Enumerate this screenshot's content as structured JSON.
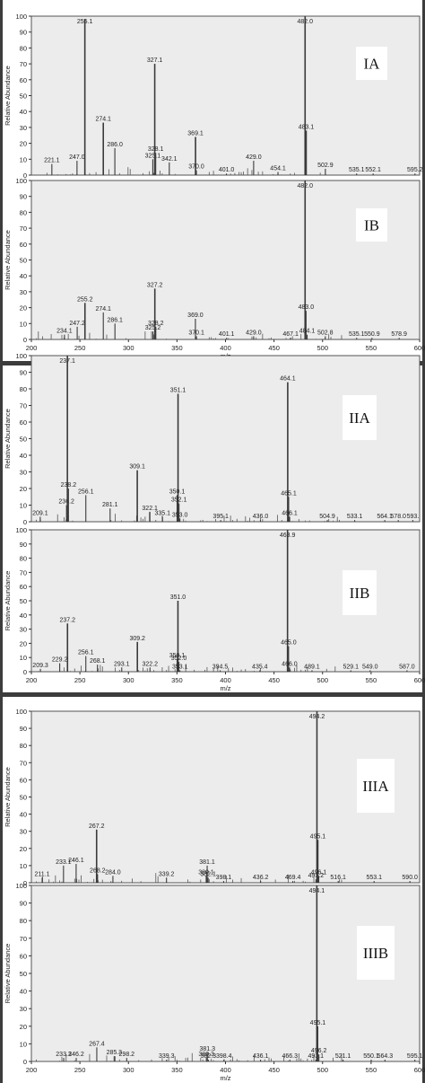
{
  "figure": {
    "x_axis_label": "m/z",
    "y_axis_label": "Relative Abundance",
    "x_ticks": [
      200,
      250,
      300,
      350,
      400,
      450,
      500,
      550,
      600
    ],
    "y_ticks": [
      0,
      10,
      20,
      30,
      40,
      50,
      60,
      70,
      80,
      90,
      100
    ]
  },
  "chart_data": [
    {
      "type": "bar",
      "title": "IA",
      "xlabel": "m/z",
      "ylabel": "Relative Abundance",
      "xlim": [
        200,
        600
      ],
      "ylim": [
        0,
        100
      ],
      "grid": false,
      "peaks": [
        {
          "x": 221.1,
          "y": 7,
          "label": "221.1"
        },
        {
          "x": 247.0,
          "y": 9,
          "label": "247.0"
        },
        {
          "x": 255.1,
          "y": 98,
          "label": "255.1"
        },
        {
          "x": 274.1,
          "y": 33,
          "label": "274.1"
        },
        {
          "x": 286.0,
          "y": 17,
          "label": "286.0"
        },
        {
          "x": 325.1,
          "y": 10,
          "label": "325.1"
        },
        {
          "x": 327.1,
          "y": 70,
          "label": "327.1"
        },
        {
          "x": 328.1,
          "y": 14,
          "label": "328.1"
        },
        {
          "x": 342.1,
          "y": 8,
          "label": "342.1"
        },
        {
          "x": 369.1,
          "y": 24,
          "label": "369.1"
        },
        {
          "x": 370.0,
          "y": 3,
          "label": "370.0"
        },
        {
          "x": 401.0,
          "y": 1,
          "label": "401.0"
        },
        {
          "x": 429.0,
          "y": 9,
          "label": "429.0"
        },
        {
          "x": 454.1,
          "y": 2,
          "label": "454.1"
        },
        {
          "x": 482.0,
          "y": 100,
          "label": "482.0"
        },
        {
          "x": 483.1,
          "y": 28,
          "label": "483.1"
        },
        {
          "x": 502.9,
          "y": 4,
          "label": "502.9"
        },
        {
          "x": 535.1,
          "y": 1,
          "label": "535.1"
        },
        {
          "x": 552.1,
          "y": 1,
          "label": "552.1"
        },
        {
          "x": 595.2,
          "y": 1,
          "label": "595.2"
        }
      ]
    },
    {
      "type": "bar",
      "title": "IB",
      "xlabel": "m/z",
      "ylabel": "Relative Abundance",
      "xlim": [
        200,
        600
      ],
      "ylim": [
        0,
        100
      ],
      "grid": false,
      "peaks": [
        {
          "x": 234.1,
          "y": 3,
          "label": "234.1"
        },
        {
          "x": 247.2,
          "y": 8,
          "label": "247.2"
        },
        {
          "x": 255.2,
          "y": 23,
          "label": "255.2"
        },
        {
          "x": 274.1,
          "y": 17,
          "label": "274.1"
        },
        {
          "x": 286.1,
          "y": 10,
          "label": "286.1"
        },
        {
          "x": 325.2,
          "y": 5,
          "label": "325.2"
        },
        {
          "x": 327.2,
          "y": 32,
          "label": "327.2"
        },
        {
          "x": 328.2,
          "y": 8,
          "label": "328.2"
        },
        {
          "x": 369.0,
          "y": 13,
          "label": "369.0"
        },
        {
          "x": 370.1,
          "y": 2,
          "label": "370.1"
        },
        {
          "x": 401.1,
          "y": 1,
          "label": "401.1"
        },
        {
          "x": 429.0,
          "y": 2,
          "label": "429.0"
        },
        {
          "x": 467.1,
          "y": 1,
          "label": "467.1"
        },
        {
          "x": 482.0,
          "y": 100,
          "label": "482.0"
        },
        {
          "x": 483.0,
          "y": 18,
          "label": "483.0"
        },
        {
          "x": 484.1,
          "y": 3,
          "label": "484.1"
        },
        {
          "x": 502.8,
          "y": 2,
          "label": "502.8"
        },
        {
          "x": 535.1,
          "y": 1,
          "label": "535.1"
        },
        {
          "x": 550.9,
          "y": 1,
          "label": "550.9"
        },
        {
          "x": 578.9,
          "y": 1,
          "label": "578.9"
        }
      ]
    },
    {
      "type": "bar",
      "title": "IIA",
      "xlabel": "m/z",
      "ylabel": "Relative Abundance",
      "xlim": [
        200,
        600
      ],
      "ylim": [
        0,
        100
      ],
      "grid": false,
      "peaks": [
        {
          "x": 209.1,
          "y": 3,
          "label": "209.1"
        },
        {
          "x": 236.2,
          "y": 10,
          "label": "236.2"
        },
        {
          "x": 237.1,
          "y": 100,
          "label": "237.1"
        },
        {
          "x": 238.2,
          "y": 20,
          "label": "238.2"
        },
        {
          "x": 256.1,
          "y": 16,
          "label": "256.1"
        },
        {
          "x": 281.1,
          "y": 8,
          "label": "281.1"
        },
        {
          "x": 309.1,
          "y": 31,
          "label": "309.1"
        },
        {
          "x": 322.1,
          "y": 6,
          "label": "322.1"
        },
        {
          "x": 335.1,
          "y": 3,
          "label": "335.1"
        },
        {
          "x": 350.1,
          "y": 16,
          "label": "350.1"
        },
        {
          "x": 351.1,
          "y": 77,
          "label": "351.1"
        },
        {
          "x": 352.1,
          "y": 11,
          "label": "352.1"
        },
        {
          "x": 353.0,
          "y": 2,
          "label": "353.0"
        },
        {
          "x": 395.1,
          "y": 1,
          "label": "395.1"
        },
        {
          "x": 436.0,
          "y": 1,
          "label": "436.0"
        },
        {
          "x": 464.1,
          "y": 84,
          "label": "464.1"
        },
        {
          "x": 465.1,
          "y": 15,
          "label": "465.1"
        },
        {
          "x": 466.1,
          "y": 3,
          "label": "466.1"
        },
        {
          "x": 504.9,
          "y": 1,
          "label": "504.9"
        },
        {
          "x": 533.1,
          "y": 1,
          "label": "533.1"
        },
        {
          "x": 564.1,
          "y": 1,
          "label": "564.1"
        },
        {
          "x": 578.0,
          "y": 1,
          "label": "578.0"
        },
        {
          "x": 593.0,
          "y": 1,
          "label": "593."
        }
      ]
    },
    {
      "type": "bar",
      "title": "IIB",
      "xlabel": "m/z",
      "ylabel": "Relative Abundance",
      "xlim": [
        200,
        600
      ],
      "ylim": [
        0,
        100
      ],
      "grid": false,
      "peaks": [
        {
          "x": 209.3,
          "y": 2,
          "label": "209.3"
        },
        {
          "x": 229.2,
          "y": 6,
          "label": "229.2"
        },
        {
          "x": 237.2,
          "y": 34,
          "label": "237.2"
        },
        {
          "x": 256.1,
          "y": 11,
          "label": "256.1"
        },
        {
          "x": 268.1,
          "y": 5,
          "label": "268.1"
        },
        {
          "x": 293.1,
          "y": 3,
          "label": "293.1"
        },
        {
          "x": 309.2,
          "y": 21,
          "label": "309.2"
        },
        {
          "x": 322.2,
          "y": 3,
          "label": "322.2"
        },
        {
          "x": 350.1,
          "y": 9,
          "label": "350.1"
        },
        {
          "x": 351.0,
          "y": 50,
          "label": "351.0"
        },
        {
          "x": 352.0,
          "y": 7,
          "label": "352.0"
        },
        {
          "x": 353.1,
          "y": 1,
          "label": "353.1"
        },
        {
          "x": 394.5,
          "y": 1,
          "label": "394.5"
        },
        {
          "x": 435.4,
          "y": 1,
          "label": "435.4"
        },
        {
          "x": 463.9,
          "y": 100,
          "label": "463.9"
        },
        {
          "x": 465.0,
          "y": 18,
          "label": "465.0"
        },
        {
          "x": 466.0,
          "y": 3,
          "label": "466.0"
        },
        {
          "x": 489.1,
          "y": 1,
          "label": "489.1"
        },
        {
          "x": 529.1,
          "y": 1,
          "label": "529.1"
        },
        {
          "x": 549.0,
          "y": 1,
          "label": "549.0"
        },
        {
          "x": 587.0,
          "y": 1,
          "label": "587.0"
        }
      ]
    },
    {
      "type": "bar",
      "title": "IIIA",
      "xlabel": "m/z",
      "ylabel": "Relative Abundance",
      "xlim": [
        200,
        600
      ],
      "ylim": [
        0,
        100
      ],
      "grid": false,
      "peaks": [
        {
          "x": 211.1,
          "y": 3,
          "label": "211.1"
        },
        {
          "x": 233.1,
          "y": 10,
          "label": "233.1"
        },
        {
          "x": 246.1,
          "y": 11,
          "label": "246.1"
        },
        {
          "x": 267.2,
          "y": 31,
          "label": "267.2"
        },
        {
          "x": 268.2,
          "y": 5,
          "label": "268.2"
        },
        {
          "x": 284.0,
          "y": 4,
          "label": "284.0"
        },
        {
          "x": 339.2,
          "y": 3,
          "label": "339.2"
        },
        {
          "x": 380.1,
          "y": 4,
          "label": "380.1"
        },
        {
          "x": 381.1,
          "y": 10,
          "label": "381.1"
        },
        {
          "x": 382.1,
          "y": 3,
          "label": "382.1"
        },
        {
          "x": 398.1,
          "y": 1,
          "label": "398.1"
        },
        {
          "x": 436.2,
          "y": 1,
          "label": "436.2"
        },
        {
          "x": 469.4,
          "y": 1,
          "label": "469.4"
        },
        {
          "x": 493.2,
          "y": 2,
          "label": "493.2"
        },
        {
          "x": 494.2,
          "y": 100,
          "label": "494.2"
        },
        {
          "x": 495.1,
          "y": 25,
          "label": "495.1"
        },
        {
          "x": 496.1,
          "y": 4,
          "label": "496.1"
        },
        {
          "x": 516.1,
          "y": 1,
          "label": "516.1"
        },
        {
          "x": 553.1,
          "y": 1,
          "label": "553.1"
        },
        {
          "x": 590.0,
          "y": 1,
          "label": "590.0"
        }
      ]
    },
    {
      "type": "bar",
      "title": "IIIB",
      "xlabel": "m/z",
      "ylabel": "Relative Abundance",
      "xlim": [
        200,
        600
      ],
      "ylim": [
        0,
        100
      ],
      "grid": false,
      "peaks": [
        {
          "x": 233.3,
          "y": 2,
          "label": "233.3"
        },
        {
          "x": 246.2,
          "y": 2,
          "label": "246.2"
        },
        {
          "x": 267.4,
          "y": 8,
          "label": "267.4"
        },
        {
          "x": 285.3,
          "y": 3,
          "label": "285.3"
        },
        {
          "x": 298.2,
          "y": 2,
          "label": "298.2"
        },
        {
          "x": 339.3,
          "y": 1,
          "label": "339.3"
        },
        {
          "x": 380.3,
          "y": 2,
          "label": "380.3"
        },
        {
          "x": 381.3,
          "y": 5,
          "label": "381.3"
        },
        {
          "x": 382.3,
          "y": 1,
          "label": "382.3"
        },
        {
          "x": 398.4,
          "y": 1,
          "label": "398.4"
        },
        {
          "x": 436.1,
          "y": 1,
          "label": "436.1"
        },
        {
          "x": 466.3,
          "y": 1,
          "label": "466.3"
        },
        {
          "x": 493.1,
          "y": 1,
          "label": "493.1"
        },
        {
          "x": 494.1,
          "y": 100,
          "label": "494.1"
        },
        {
          "x": 495.1,
          "y": 20,
          "label": "495.1"
        },
        {
          "x": 496.2,
          "y": 4,
          "label": "496.2"
        },
        {
          "x": 521.1,
          "y": 1,
          "label": "521.1"
        },
        {
          "x": 550.1,
          "y": 1,
          "label": "550.1"
        },
        {
          "x": 564.3,
          "y": 1,
          "label": "564.3"
        },
        {
          "x": 595.1,
          "y": 1,
          "label": "595.1"
        }
      ]
    }
  ]
}
